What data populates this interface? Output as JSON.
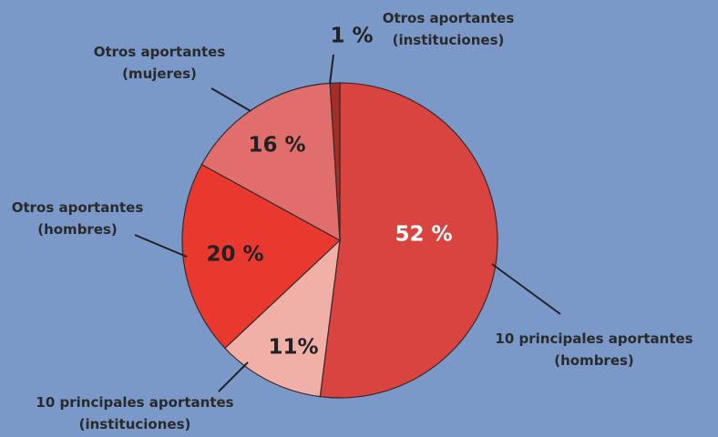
{
  "chart_data": {
    "type": "pie",
    "categories": [
      "10 principales aportantes\n(hombres)",
      "10 principales aportantes\n(instituciones)",
      "Otros aportantes\n(hombres)",
      "Otros aportantes\n(mujeres)",
      "Otros aportantes\n(instituciones)"
    ],
    "values": [
      52,
      11,
      20,
      16,
      1
    ],
    "value_labels": [
      "52 %",
      "11%",
      "20 %",
      "16 %",
      "1 %"
    ],
    "colors": [
      "#d94440",
      "#f0b0a8",
      "#e9382e",
      "#e06e6c",
      "#a52d27"
    ]
  }
}
